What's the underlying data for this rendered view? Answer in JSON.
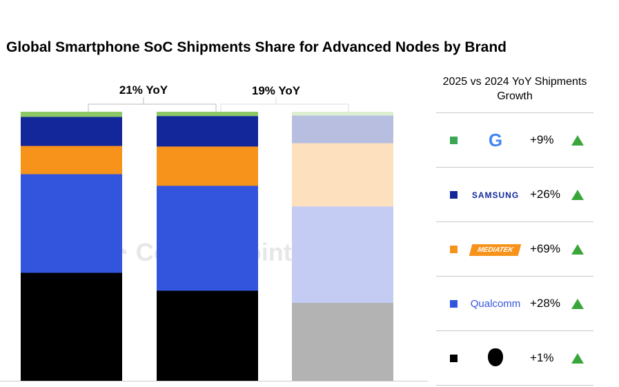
{
  "chart_data": {
    "type": "bar",
    "stacked": true,
    "normalized": true,
    "title": "Global Smartphone SoC Shipments Share for Advanced Nodes by Brand",
    "categories": [
      "",
      "",
      ""
    ],
    "ylim": [
      0,
      100
    ],
    "grid": false,
    "series": [
      {
        "name": "Apple",
        "values": [
          40.3,
          33.6,
          29.2
        ],
        "color": "#000000",
        "faded": "#b3b3b3"
      },
      {
        "name": "Qualcomm",
        "values": [
          36.7,
          39.0,
          35.9
        ],
        "color": "#3355dd",
        "faded": "#c4ccf4"
      },
      {
        "name": "MediaTek",
        "values": [
          10.5,
          14.6,
          23.6
        ],
        "color": "#f7931a",
        "faded": "#fde0bd"
      },
      {
        "name": "Samsung",
        "values": [
          10.8,
          11.3,
          10.3
        ],
        "color": "#13279a",
        "faded": "#b7bee0"
      },
      {
        "name": "Google",
        "values": [
          1.8,
          1.5,
          1.3
        ],
        "color": "#8cc866",
        "faded": "#dcefd0"
      }
    ],
    "annotations": [
      "21% YoY",
      "19% YoY"
    ]
  },
  "watermark": "Counterpoint",
  "panel": {
    "title": "2025 vs 2024 YoY Shipments Growth",
    "rows": [
      {
        "brand": "Google",
        "logo": "G",
        "growth": "+9%",
        "color": "#3aa654",
        "trend": "up"
      },
      {
        "brand": "Samsung",
        "logo": "SAMSUNG",
        "growth": "+26%",
        "color": "#13279a",
        "trend": "up"
      },
      {
        "brand": "MediaTek",
        "logo": "MEDIATEK",
        "growth": "+69%",
        "color": "#f7931a",
        "trend": "up"
      },
      {
        "brand": "Qualcomm",
        "logo": "Qualcomm",
        "growth": "+28%",
        "color": "#3355dd",
        "trend": "up"
      },
      {
        "brand": "Apple",
        "logo": "apple-logo",
        "growth": "+1%",
        "color": "#000000",
        "trend": "up"
      }
    ]
  }
}
